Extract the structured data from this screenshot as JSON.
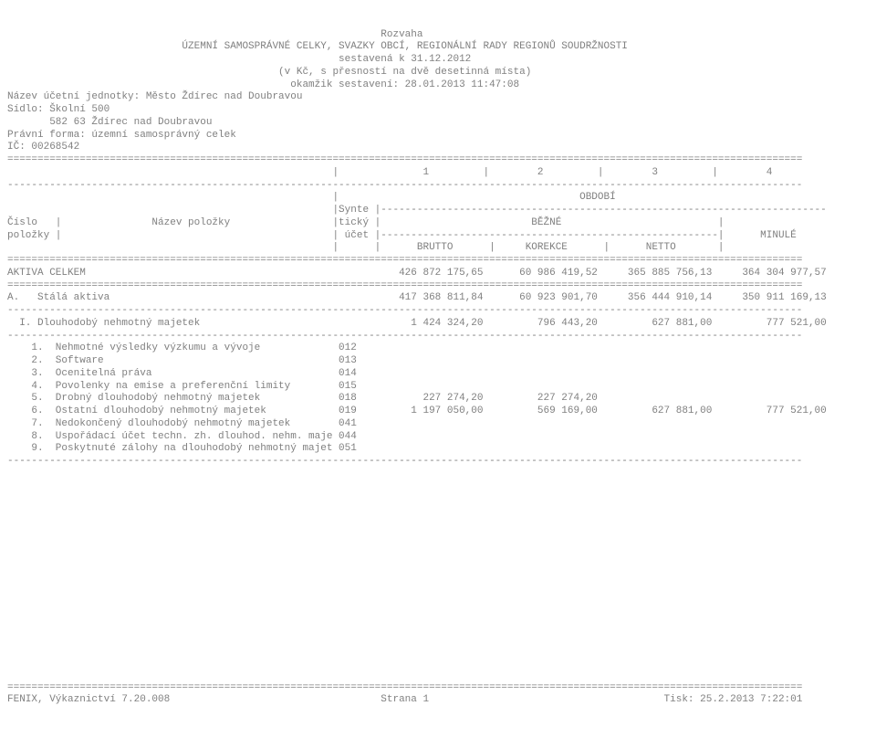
{
  "header": {
    "title": "Rozvaha",
    "subtitle": "ÚZEMNÍ SAMOSPRÁVNÉ CELKY, SVAZKY OBCÍ, REGIONÁLNÍ RADY REGIONŮ SOUDRŽNOSTI",
    "compiled": "sestavená k 31.12.2012",
    "precision": "(v Kč, s přesností na dvě desetinná místa)",
    "moment": "okamžik sestavení: 28.01.2013 11:47:08"
  },
  "entity": {
    "name_line": "Název účetní jednotky: Město Ždírec nad Doubravou",
    "seat_line": "Sídlo: Školní 500",
    "seat_line2": "       582 63 Ždírec nad Doubravou",
    "legal_form": "Právní forma: územní samosprávný celek",
    "ico": "IČ: 00268542"
  },
  "col_headers": {
    "c1": "1",
    "c2": "2",
    "c3": "3",
    "c4": "4"
  },
  "period_label": "OBDOBÍ",
  "row_head": {
    "cislo": "Číslo",
    "nazev": "Název položky",
    "synte": "Synte",
    "ticky": "tický",
    "bezne": "BĚŽNÉ",
    "polozky": "položky",
    "ucet": "účet",
    "minule": "MINULÉ",
    "brutto": "BRUTTO",
    "korekce": "KOREKCE",
    "netto": "NETTO"
  },
  "totals": {
    "label": "AKTIVA CELKEM",
    "brutto": "426 872 175,65",
    "korekce": "60 986 419,52",
    "netto": "365 885 756,13",
    "minule": "364 304 977,57"
  },
  "sectionA": {
    "label": "A.   Stálá aktiva",
    "brutto": "417 368 811,84",
    "korekce": "60 923 901,70",
    "netto": "356 444 910,14",
    "minule": "350 911 169,13"
  },
  "sectionI": {
    "label": "  I. Dlouhodobý nehmotný majetek",
    "brutto": "1 424 324,20",
    "korekce": "796 443,20",
    "netto": "627 881,00",
    "minule": "777 521,00"
  },
  "rows": [
    {
      "num": "1",
      "label": "Nehmotné výsledky výzkumu a vývoje",
      "acct": "012",
      "brutto": "",
      "korekce": "",
      "netto": "",
      "minule": ""
    },
    {
      "num": "2",
      "label": "Software",
      "acct": "013",
      "brutto": "",
      "korekce": "",
      "netto": "",
      "minule": ""
    },
    {
      "num": "3",
      "label": "Ocenitelná práva",
      "acct": "014",
      "brutto": "",
      "korekce": "",
      "netto": "",
      "minule": ""
    },
    {
      "num": "4",
      "label": "Povolenky na emise a preferenční limity",
      "acct": "015",
      "brutto": "",
      "korekce": "",
      "netto": "",
      "minule": ""
    },
    {
      "num": "5",
      "label": "Drobný dlouhodobý nehmotný majetek",
      "acct": "018",
      "brutto": "227 274,20",
      "korekce": "227 274,20",
      "netto": "",
      "minule": ""
    },
    {
      "num": "6",
      "label": "Ostatní dlouhodobý nehmotný majetek",
      "acct": "019",
      "brutto": "1 197 050,00",
      "korekce": "569 169,00",
      "netto": "627 881,00",
      "minule": "777 521,00"
    },
    {
      "num": "7",
      "label": "Nedokončený dlouhodobý nehmotný majetek",
      "acct": "041",
      "brutto": "",
      "korekce": "",
      "netto": "",
      "minule": ""
    },
    {
      "num": "8",
      "label": "Uspořádací účet techn. zh. dlouhod. nehm. majetku",
      "acct": "044",
      "brutto": "",
      "korekce": "",
      "netto": "",
      "minule": ""
    },
    {
      "num": "9",
      "label": "Poskytnuté zálohy na dlouhodobý nehmotný majetek",
      "acct": "051",
      "brutto": "",
      "korekce": "",
      "netto": "",
      "minule": ""
    }
  ],
  "footer": {
    "left": "FENIX, Výkaznictví 7.20.008",
    "center": "Strana 1",
    "right": "Tisk: 25.2.2013 7:22:01"
  },
  "style": {
    "text_color": "#808080",
    "background": "#ffffff",
    "font_family": "Courier New",
    "font_size_pt": 8
  }
}
